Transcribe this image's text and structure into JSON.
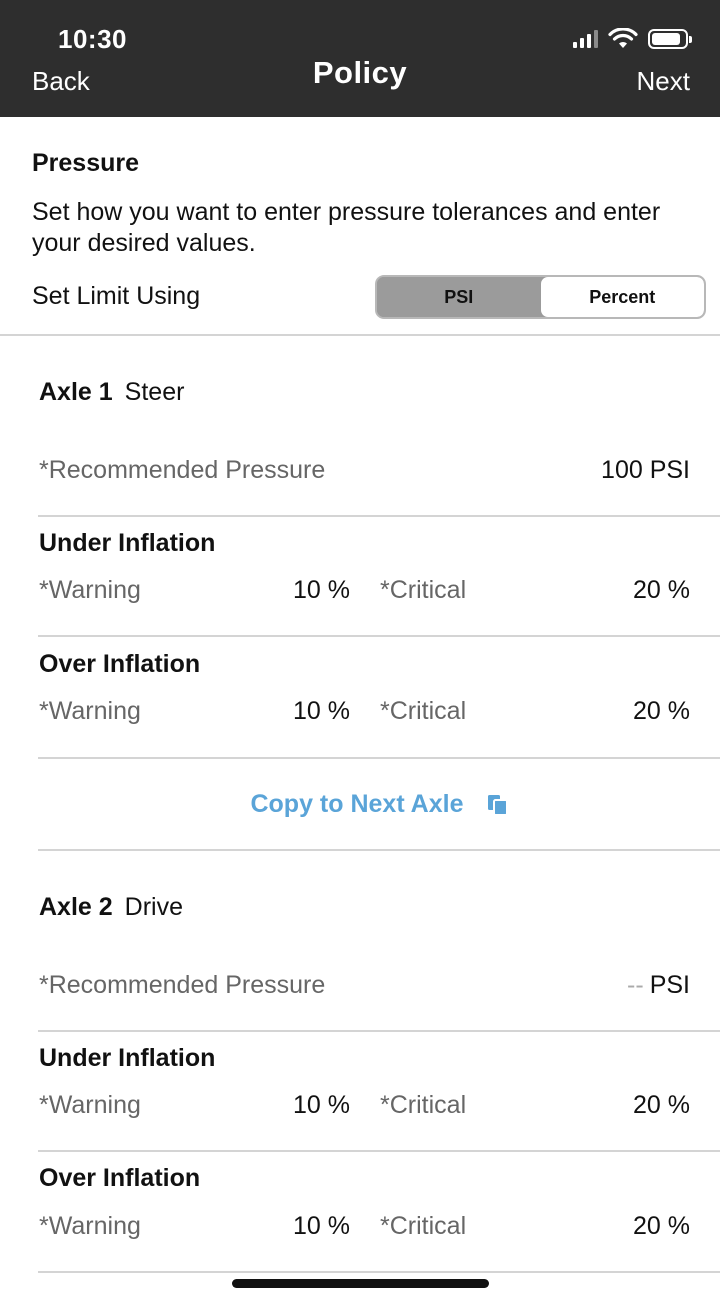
{
  "status_bar": {
    "time": "10:30"
  },
  "nav": {
    "back": "Back",
    "title": "Policy",
    "next": "Next"
  },
  "pressure": {
    "title": "Pressure",
    "description": "Set how you want to enter pressure tolerances and enter your desired values.",
    "limit_label": "Set Limit Using",
    "options": [
      "PSI",
      "Percent"
    ],
    "selected": "PSI"
  },
  "axles": [
    {
      "number": "Axle 1",
      "type": "Steer",
      "recommended_label": "*Recommended Pressure",
      "recommended_value": "100 PSI",
      "recommended_dash": "",
      "under": {
        "title": "Under Inflation",
        "warning_label": "*Warning",
        "warning_value": "10 %",
        "critical_label": "*Critical",
        "critical_value": "20 %"
      },
      "over": {
        "title": "Over Inflation",
        "warning_label": "*Warning",
        "warning_value": "10 %",
        "critical_label": "*Critical",
        "critical_value": "20 %"
      }
    },
    {
      "number": "Axle 2",
      "type": "Drive",
      "recommended_label": "*Recommended Pressure",
      "recommended_value": "PSI",
      "recommended_dash": "--",
      "under": {
        "title": "Under Inflation",
        "warning_label": "*Warning",
        "warning_value": "10 %",
        "critical_label": "*Critical",
        "critical_value": "20 %"
      },
      "over": {
        "title": "Over Inflation",
        "warning_label": "*Warning",
        "warning_value": "10 %",
        "critical_label": "*Critical",
        "critical_value": "20 %"
      }
    }
  ],
  "copy_button": {
    "label": "Copy to Next Axle",
    "icon": "copy-icon"
  },
  "colors": {
    "header_bg": "#2e2e2e",
    "accent": "#5aa4d8",
    "segment_active": "#9b9b9b"
  }
}
